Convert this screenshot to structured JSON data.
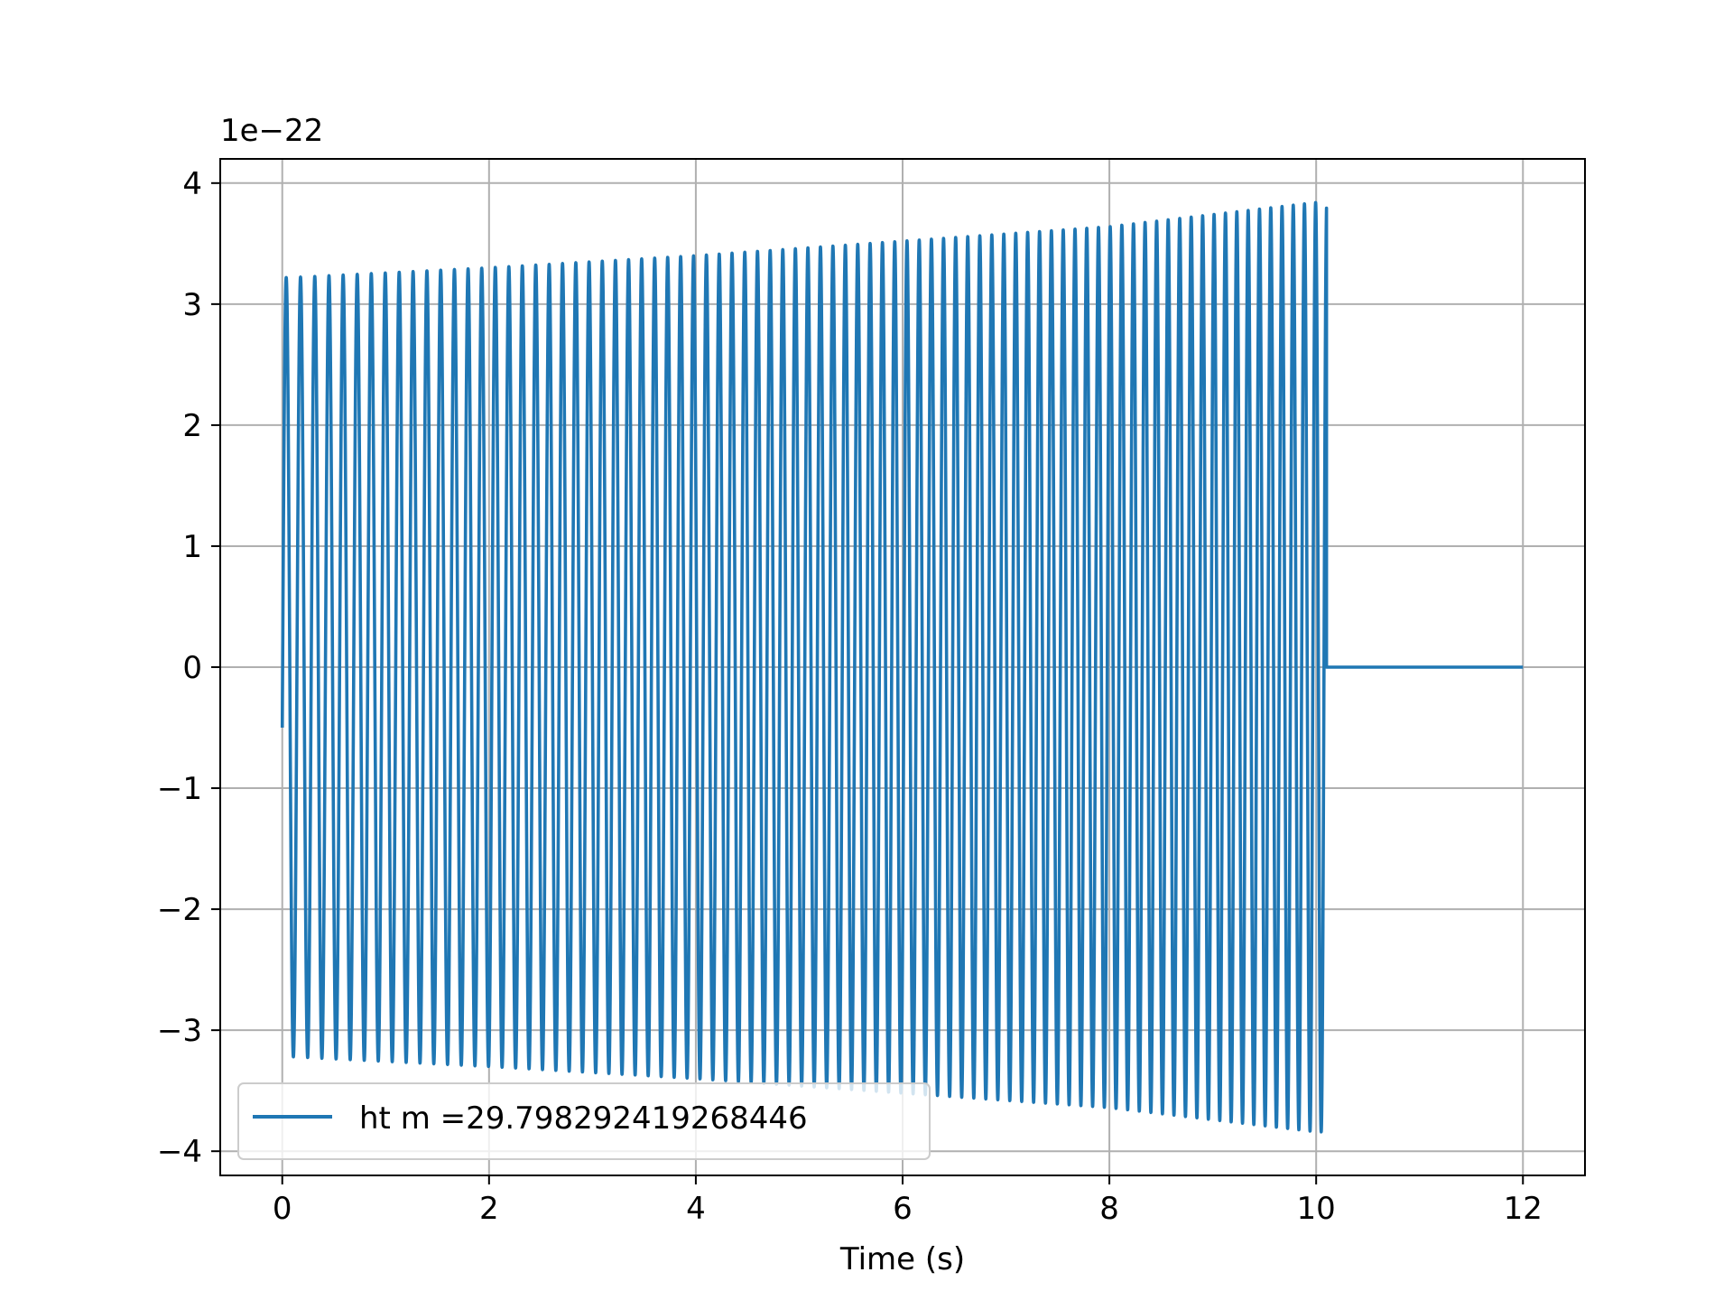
{
  "chart_data": {
    "type": "line",
    "title": "",
    "xlabel": "Time (s)",
    "ylabel": "",
    "y_offset_label": "1e−22",
    "xlim": [
      -0.6,
      12.6
    ],
    "ylim": [
      -4.2,
      4.2
    ],
    "xticks": [
      0,
      2,
      4,
      6,
      8,
      10,
      12
    ],
    "xtick_labels": [
      "0",
      "2",
      "4",
      "6",
      "8",
      "10",
      "12"
    ],
    "yticks": [
      -4,
      -3,
      -2,
      -1,
      0,
      1,
      2,
      3,
      4
    ],
    "ytick_labels": [
      "−4",
      "−3",
      "−2",
      "−1",
      "0",
      "1",
      "2",
      "3",
      "4"
    ],
    "grid": true,
    "legend_position": "lower-left",
    "series": [
      {
        "name": "ht m =29.798292419268446",
        "color": "#1f77b4",
        "t_start": 0.0,
        "t_end_signal": 10.1,
        "t_end": 12.0,
        "initial_value": -0.5,
        "envelope_t": [
          0.1,
          2.0,
          4.0,
          6.0,
          8.0,
          10.0
        ],
        "envelope_amplitude": [
          3.22,
          3.3,
          3.4,
          3.52,
          3.64,
          3.84
        ],
        "final_peak_value": 3.6,
        "cycles": 83,
        "post_signal_value": 0.0
      }
    ]
  }
}
